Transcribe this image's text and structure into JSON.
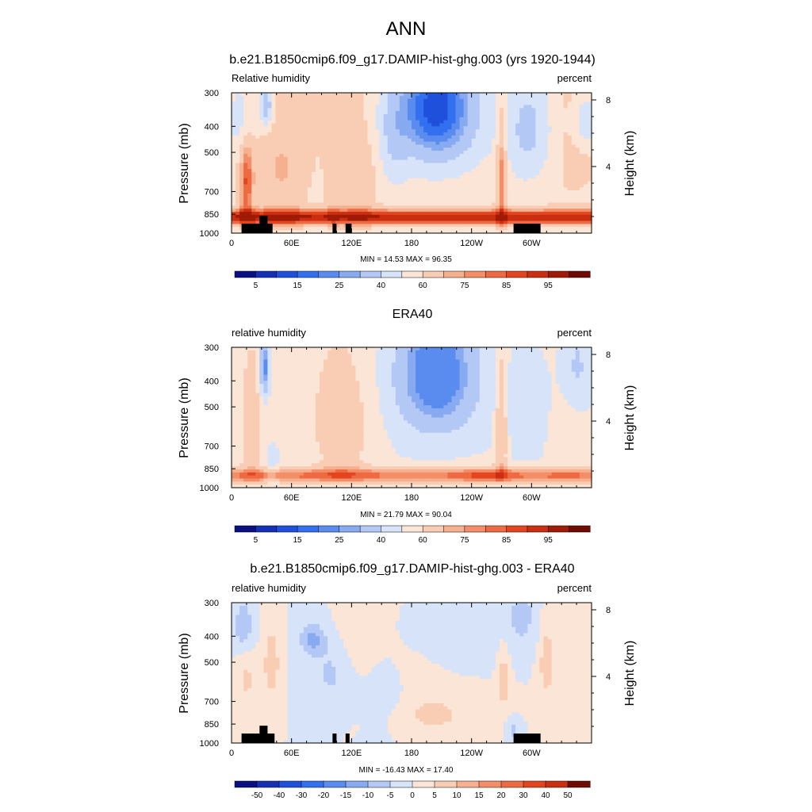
{
  "figure": {
    "title": "ANN"
  },
  "chart_data": [
    {
      "type": "heatmap",
      "title": "b.e21.B1850cmip6.f09_g17.DAMIP-hist-ghg.003 (yrs 1920-1944)",
      "left_label": "Relative humidity",
      "right_label": "percent",
      "ylabel": "Pressure (mb)",
      "y2label": "Height (km)",
      "y_ticks": [
        "300",
        "400",
        "500",
        "700",
        "850",
        "1000"
      ],
      "y_tick_values": [
        300,
        400,
        500,
        700,
        850,
        1000
      ],
      "y2_ticks": [
        "8",
        "4"
      ],
      "y2_tick_values": [
        8,
        4
      ],
      "x_ticks": [
        "0",
        "60E",
        "120E",
        "180",
        "120W",
        "60W"
      ],
      "x_tick_values": [
        0,
        60,
        120,
        180,
        240,
        300
      ],
      "xlim": [
        0,
        360
      ],
      "ylim": [
        1000,
        300
      ],
      "stats": "MIN =  14.53  MAX =  96.35",
      "min": 14.53,
      "max": 96.35,
      "colorbar_labels": [
        "5",
        "15",
        "25",
        "40",
        "60",
        "75",
        "85",
        "95"
      ],
      "palette": "full",
      "field": "model",
      "terrain": [
        {
          "lon0": 10,
          "lon1": 41,
          "p": 922
        },
        {
          "lon0": 28,
          "lon1": 36,
          "p": 862
        },
        {
          "lon0": 101,
          "lon1": 105,
          "p": 922
        },
        {
          "lon0": 114,
          "lon1": 120,
          "p": 922
        },
        {
          "lon0": 282,
          "lon1": 309,
          "p": 922
        }
      ]
    },
    {
      "type": "heatmap",
      "title": "ERA40",
      "left_label": "relative humidity",
      "right_label": "percent",
      "ylabel": "Pressure (mb)",
      "y2label": "Height (km)",
      "y_ticks": [
        "300",
        "400",
        "500",
        "700",
        "850",
        "1000"
      ],
      "y_tick_values": [
        300,
        400,
        500,
        700,
        850,
        1000
      ],
      "y2_ticks": [
        "8",
        "4"
      ],
      "y2_tick_values": [
        8,
        4
      ],
      "x_ticks": [
        "0",
        "60E",
        "120E",
        "180",
        "120W",
        "60W"
      ],
      "x_tick_values": [
        0,
        60,
        120,
        180,
        240,
        300
      ],
      "xlim": [
        0,
        360
      ],
      "ylim": [
        1000,
        300
      ],
      "stats": "MIN =  21.79  MAX =  90.04",
      "min": 21.79,
      "max": 90.04,
      "colorbar_labels": [
        "5",
        "15",
        "25",
        "40",
        "60",
        "75",
        "85",
        "95"
      ],
      "palette": "full",
      "field": "obs",
      "terrain": []
    },
    {
      "type": "heatmap",
      "title": "b.e21.B1850cmip6.f09_g17.DAMIP-hist-ghg.003 - ERA40",
      "left_label": "relative humidity",
      "right_label": "percent",
      "ylabel": "Pressure (mb)",
      "y2label": "Height (km)",
      "y_ticks": [
        "300",
        "400",
        "500",
        "700",
        "850",
        "1000"
      ],
      "y_tick_values": [
        300,
        400,
        500,
        700,
        850,
        1000
      ],
      "y2_ticks": [
        "8",
        "4"
      ],
      "y2_tick_values": [
        8,
        4
      ],
      "x_ticks": [
        "0",
        "60E",
        "120E",
        "180",
        "120W",
        "60W"
      ],
      "x_tick_values": [
        0,
        60,
        120,
        180,
        240,
        300
      ],
      "xlim": [
        0,
        360
      ],
      "ylim": [
        1000,
        300
      ],
      "stats": "MIN = -16.43  MAX =  17.40",
      "min": -16.43,
      "max": 17.4,
      "colorbar_labels": [
        "-50",
        "-40",
        "-30",
        "-20",
        "-15",
        "-10",
        "-5",
        "0",
        "5",
        "10",
        "15",
        "20",
        "30",
        "40",
        "50"
      ],
      "palette": "diff",
      "field": "diff",
      "terrain": [
        {
          "lon0": 10,
          "lon1": 43,
          "p": 922
        },
        {
          "lon0": 28,
          "lon1": 36,
          "p": 862
        },
        {
          "lon0": 101,
          "lon1": 105,
          "p": 922
        },
        {
          "lon0": 114,
          "lon1": 118,
          "p": 922
        },
        {
          "lon0": 282,
          "lon1": 309,
          "p": 922
        }
      ]
    }
  ],
  "colors": {
    "full": [
      "#0a0f82",
      "#1430b4",
      "#1f50dc",
      "#3270f0",
      "#5a8cf0",
      "#87aaf0",
      "#b4c8f5",
      "#d7e3f8",
      "#fbe5d6",
      "#f9cdb4",
      "#f6b08f",
      "#f38e69",
      "#ee6a43",
      "#e3461f",
      "#c92f10",
      "#a01b06",
      "#6e0a00"
    ],
    "diff": [
      "#0a0f82",
      "#1430b4",
      "#1f50dc",
      "#3270f0",
      "#5a8cf0",
      "#87aaf0",
      "#b4c8f5",
      "#d7e3f8",
      "#fbe5d6",
      "#f9cdb4",
      "#f6b08f",
      "#f38e69",
      "#ee6a43",
      "#e3461f",
      "#c92f10",
      "#6e0a00"
    ],
    "terrain": "#000000"
  }
}
